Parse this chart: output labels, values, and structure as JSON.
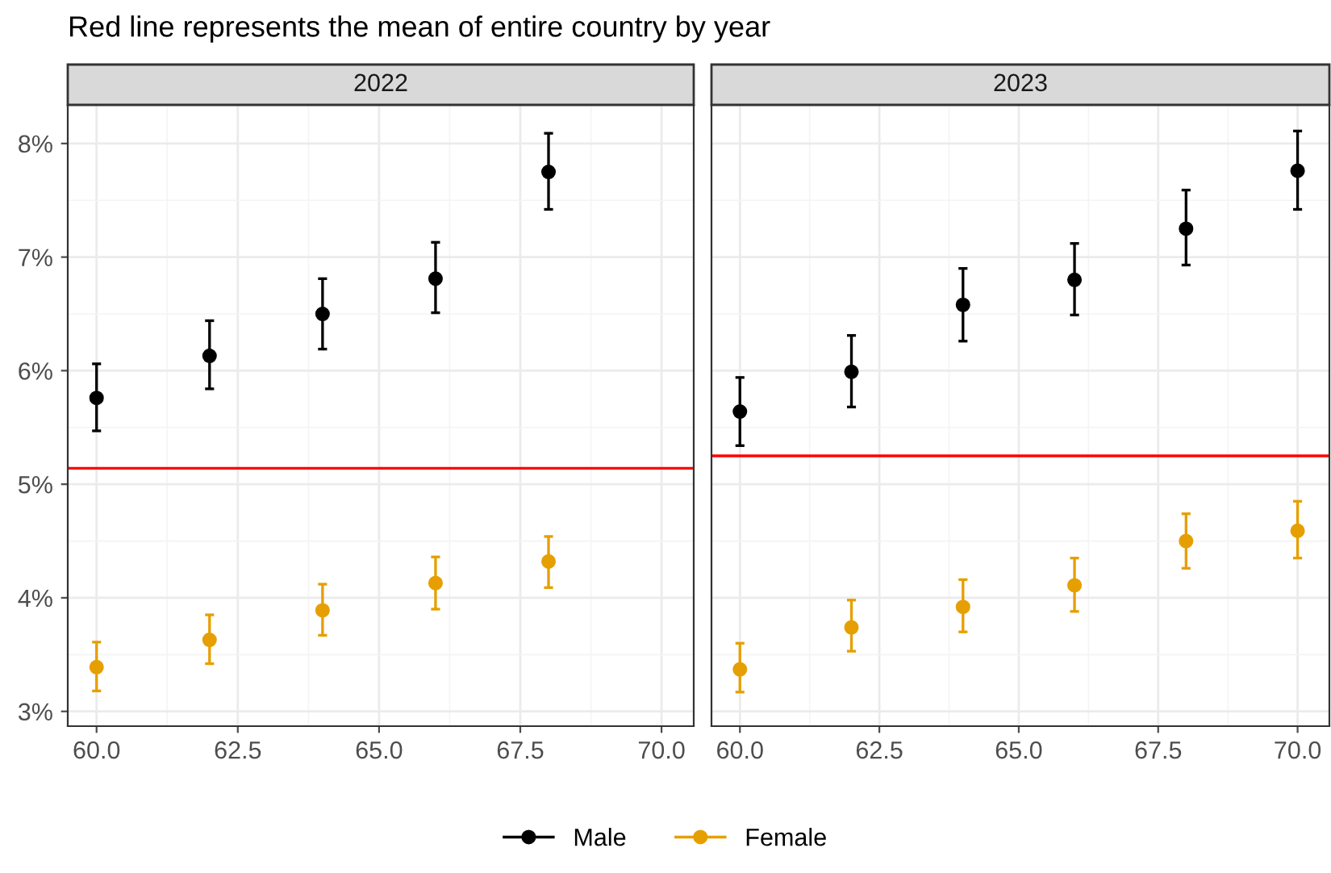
{
  "chart_data": [
    {
      "type": "scatter",
      "title": "2022",
      "annotations": [
        "Red line represents the mean of entire country by year"
      ],
      "x": [
        60,
        62,
        64,
        66,
        68
      ],
      "series": [
        {
          "name": "Male",
          "color": "#000000",
          "values": [
            5.76,
            6.13,
            6.5,
            6.81,
            7.75
          ],
          "errors": [
            [
              5.47,
              6.06
            ],
            [
              5.84,
              6.44
            ],
            [
              6.19,
              6.81
            ],
            [
              6.51,
              7.13
            ],
            [
              7.42,
              8.09
            ]
          ]
        },
        {
          "name": "Female",
          "color": "#e69f00",
          "values": [
            3.39,
            3.63,
            3.89,
            4.13,
            4.32
          ],
          "errors": [
            [
              3.18,
              3.61
            ],
            [
              3.42,
              3.85
            ],
            [
              3.67,
              4.12
            ],
            [
              3.9,
              4.36
            ],
            [
              4.09,
              4.54
            ]
          ]
        }
      ],
      "ref_lines": [
        {
          "axis": "y",
          "value": 5.14,
          "color": "#ff0000"
        }
      ],
      "xlim": [
        59.49,
        70.57
      ],
      "xticks": [
        {
          "value": 60,
          "label": "60.0"
        },
        {
          "value": 62.5,
          "label": "62.5"
        },
        {
          "value": 65,
          "label": "65.0"
        },
        {
          "value": 67.5,
          "label": "67.5"
        },
        {
          "value": 70,
          "label": "70.0"
        }
      ],
      "ylim": [
        2.87,
        8.34
      ],
      "yticks": [
        {
          "value": 3,
          "label": "3%"
        },
        {
          "value": 4,
          "label": "4%"
        },
        {
          "value": 5,
          "label": "5%"
        },
        {
          "value": 6,
          "label": "6%"
        },
        {
          "value": 7,
          "label": "7%"
        },
        {
          "value": 8,
          "label": "8%"
        }
      ],
      "grid": true,
      "marker": "circle",
      "legend": "bottom"
    },
    {
      "type": "scatter",
      "title": "2023",
      "x": [
        60,
        62,
        64,
        66,
        68,
        70
      ],
      "series": [
        {
          "name": "Male",
          "color": "#000000",
          "values": [
            5.64,
            5.99,
            6.58,
            6.8,
            7.25,
            7.76
          ],
          "errors": [
            [
              5.34,
              5.94
            ],
            [
              5.68,
              6.31
            ],
            [
              6.26,
              6.9
            ],
            [
              6.49,
              7.12
            ],
            [
              6.93,
              7.59
            ],
            [
              7.42,
              8.11
            ]
          ]
        },
        {
          "name": "Female",
          "color": "#e69f00",
          "values": [
            3.37,
            3.74,
            3.92,
            4.11,
            4.5,
            4.59
          ],
          "errors": [
            [
              3.17,
              3.6
            ],
            [
              3.53,
              3.98
            ],
            [
              3.7,
              4.16
            ],
            [
              3.88,
              4.35
            ],
            [
              4.26,
              4.74
            ],
            [
              4.35,
              4.85
            ]
          ]
        }
      ],
      "ref_lines": [
        {
          "axis": "y",
          "value": 5.25,
          "color": "#ff0000"
        }
      ],
      "xlim": [
        59.49,
        70.57
      ],
      "xticks": [
        {
          "value": 60,
          "label": "60.0"
        },
        {
          "value": 62.5,
          "label": "62.5"
        },
        {
          "value": 65,
          "label": "65.0"
        },
        {
          "value": 67.5,
          "label": "67.5"
        },
        {
          "value": 70,
          "label": "70.0"
        }
      ],
      "ylim": [
        2.87,
        8.34
      ],
      "yticks": [
        {
          "value": 3,
          "label": null
        },
        {
          "value": 4,
          "label": null
        },
        {
          "value": 5,
          "label": null
        },
        {
          "value": 6,
          "label": null
        },
        {
          "value": 7,
          "label": null
        },
        {
          "value": 8,
          "label": null
        }
      ],
      "tick_labels": "x",
      "grid": true,
      "marker": "circle"
    }
  ]
}
